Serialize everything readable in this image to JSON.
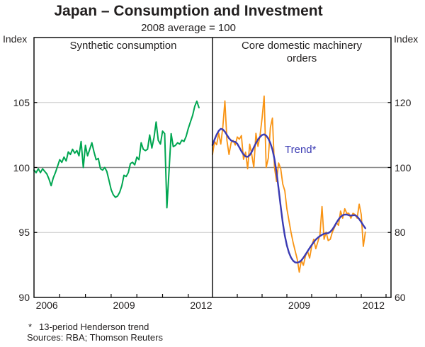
{
  "header": {
    "title": "Japan – Consumption and Investment",
    "subtitle": "2008 average = 100"
  },
  "axes": {
    "left_unit": "Index",
    "right_unit": "Index",
    "left_tick_values": [
      105,
      100,
      95,
      90
    ],
    "right_tick_values": [
      120,
      100,
      80,
      60
    ],
    "left_panel_year_labels": [
      {
        "label": "2006",
        "year": 2006
      },
      {
        "label": "2009",
        "year": 2009
      },
      {
        "label": "2012",
        "year": 2012
      }
    ],
    "right_panel_year_labels": [
      {
        "label": "2009",
        "year": 2009
      },
      {
        "label": "2012",
        "year": 2012
      }
    ]
  },
  "panels": {
    "left_title": "Synthetic consumption",
    "right_title_line1": "Core domestic machinery",
    "right_title_line2": "orders"
  },
  "annotations": {
    "trend_label": "Trend*"
  },
  "footnotes": {
    "asterisk": "*",
    "note": "13-period Henderson trend",
    "sources": "Sources: RBA; Thomson Reuters"
  },
  "colors": {
    "consumption_green": "#00a651",
    "orders_orange": "#f99414",
    "trend_blue": "#3b3bb3",
    "grid_light": "#c9c9c9",
    "grid_dark": "#8a8a8a",
    "axis_black": "#000000"
  },
  "chart_data": [
    {
      "type": "line",
      "panel": "left",
      "title": "Synthetic consumption",
      "ylabel": "Index",
      "ylim": [
        90,
        110
      ],
      "yticks": [
        90,
        95,
        100,
        105
      ],
      "reference_line": 100,
      "x_start": 2006.0,
      "frequency": "monthly",
      "x_tick_labels": [
        "2006",
        "2009",
        "2012"
      ],
      "grid": "horizontal-only",
      "series": [
        {
          "name": "Synthetic consumption",
          "color_key": "consumption_green",
          "values": [
            99.8,
            99.6,
            99.9,
            99.6,
            99.9,
            99.7,
            99.5,
            99.1,
            98.6,
            99.2,
            99.6,
            100.1,
            100.6,
            100.4,
            100.8,
            100.5,
            101.2,
            101.0,
            101.4,
            101.1,
            101.3,
            100.9,
            102.0,
            100.0,
            101.7,
            100.9,
            101.4,
            101.9,
            101.2,
            100.6,
            100.7,
            99.9,
            99.8,
            100.0,
            99.7,
            99.0,
            98.3,
            97.9,
            97.7,
            97.8,
            98.1,
            98.6,
            99.4,
            99.3,
            99.6,
            100.3,
            100.4,
            100.2,
            100.8,
            100.6,
            101.9,
            101.4,
            101.3,
            101.4,
            102.5,
            101.5,
            102.3,
            103.5,
            102.1,
            101.8,
            102.8,
            102.6,
            96.9,
            99.7,
            102.6,
            101.6,
            101.7,
            101.9,
            101.8,
            102.1,
            102.0,
            102.4,
            103.0,
            103.5,
            104.0,
            104.7,
            105.1,
            104.6
          ]
        }
      ]
    },
    {
      "type": "line",
      "panel": "right",
      "title": "Core domestic machinery orders",
      "ylabel": "Index",
      "ylim": [
        60,
        140
      ],
      "yticks": [
        60,
        80,
        100,
        120
      ],
      "reference_line": 100,
      "x_start": 2006.0,
      "frequency": "monthly",
      "x_tick_labels": [
        "2009",
        "2012"
      ],
      "grid": "horizontal-only",
      "annotation": {
        "text": "Trend*",
        "color_key": "trend_blue"
      },
      "series": [
        {
          "name": "Core domestic machinery orders",
          "color_key": "orders_orange",
          "values": [
            104.0,
            108.0,
            107.0,
            110.5,
            107.2,
            112.5,
            120.5,
            108.3,
            104.0,
            107.6,
            108.3,
            106.9,
            109.4,
            108.7,
            109.8,
            102.5,
            104.7,
            99.6,
            107.2,
            104.0,
            100.0,
            110.5,
            106.5,
            109.8,
            115.2,
            122.0,
            100.0,
            102.9,
            112.3,
            115.2,
            100.0,
            95.7,
            101.4,
            99.6,
            94.9,
            92.8,
            87.3,
            83.7,
            80.1,
            76.9,
            74.3,
            71.8,
            67.8,
            71.4,
            69.9,
            72.8,
            74.3,
            72.1,
            75.7,
            77.9,
            75.0,
            77.2,
            79.3,
            88.0,
            77.9,
            80.1,
            77.5,
            77.9,
            80.1,
            81.5,
            83.0,
            82.2,
            86.6,
            84.4,
            87.3,
            85.9,
            85.9,
            84.4,
            85.9,
            85.5,
            84.4,
            88.7,
            85.5,
            75.7,
            80.1
          ]
        },
        {
          "name": "Trend (13-period Henderson)",
          "color_key": "trend_blue",
          "values": [
            106.9,
            108.6,
            110.1,
            111.3,
            111.9,
            111.7,
            111.0,
            110.0,
            109.0,
            108.3,
            108.0,
            107.9,
            107.3,
            106.2,
            105.0,
            104.0,
            103.4,
            103.3,
            103.8,
            104.8,
            106.2,
            107.5,
            108.6,
            109.4,
            110.0,
            110.2,
            109.8,
            108.9,
            107.5,
            105.5,
            102.6,
            98.5,
            93.5,
            88.0,
            83.0,
            79.0,
            76.0,
            73.8,
            72.3,
            71.3,
            70.8,
            70.7,
            70.9,
            71.4,
            72.2,
            73.2,
            74.2,
            75.2,
            76.1,
            77.0,
            77.8,
            78.4,
            78.9,
            79.3,
            79.6,
            79.7,
            79.8,
            80.2,
            80.9,
            81.9,
            83.0,
            84.0,
            84.8,
            85.3,
            85.5,
            85.5,
            85.3,
            85.2,
            85.3,
            85.3,
            84.9,
            84.1,
            83.2,
            82.2,
            81.3
          ]
        }
      ]
    }
  ]
}
